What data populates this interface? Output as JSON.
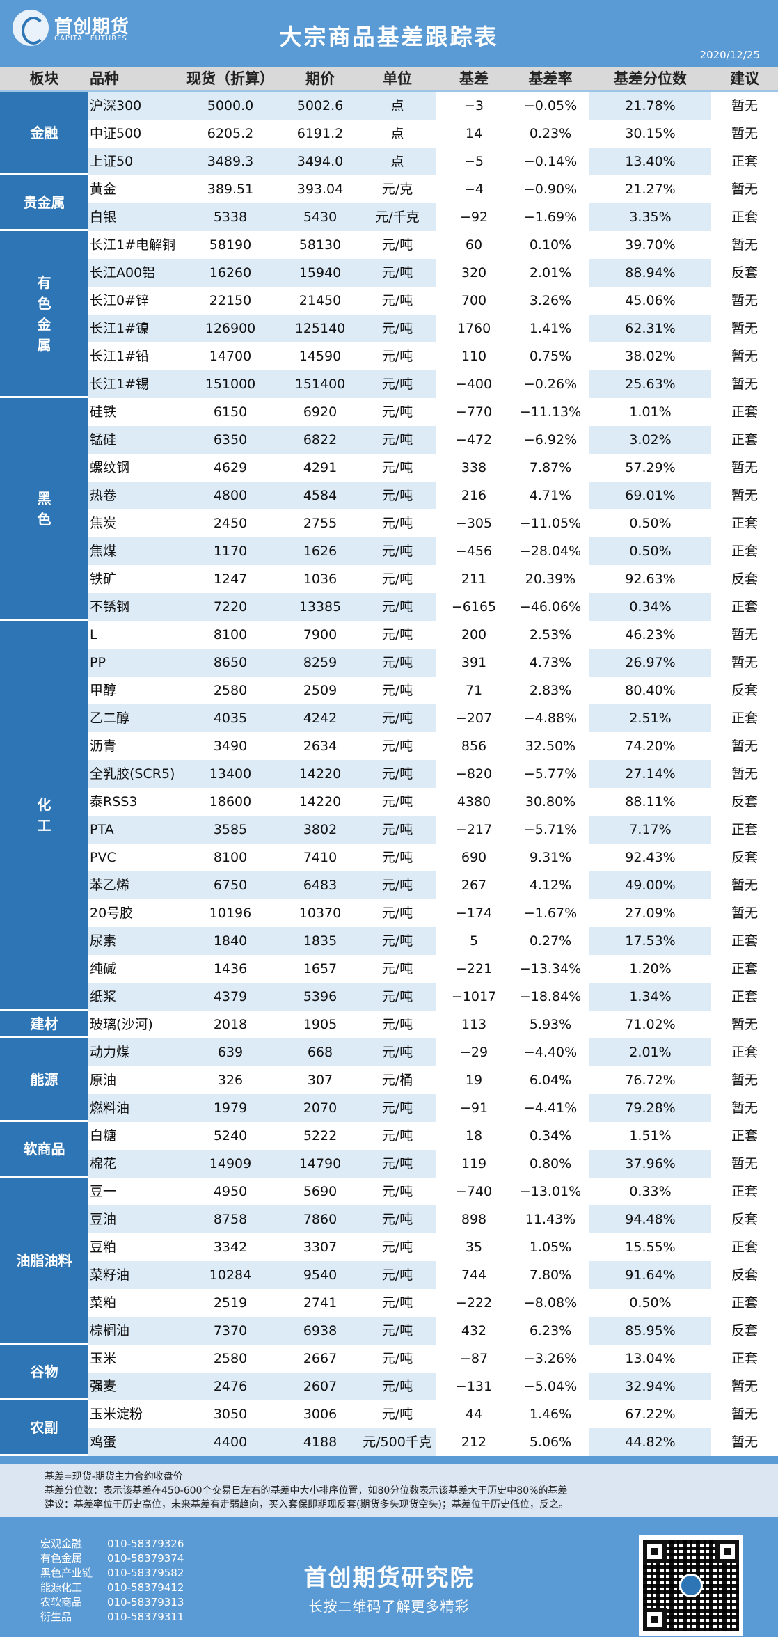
{
  "header": {
    "logo_name": "首创期货",
    "logo_sub": "CAPITAL FUTURES",
    "title": "大宗商品基差跟踪表",
    "date": "2020/12/25"
  },
  "columns": [
    "板块",
    "品种",
    "现货（折算）",
    "期价",
    "单位",
    "基差",
    "基差率",
    "基差分位数",
    "建议"
  ],
  "groups": [
    {
      "name": "金融",
      "rows": [
        [
          "沪深300",
          "5000.0",
          "5002.6",
          "点",
          "−3",
          "−0.05%",
          "21.78%",
          "暂无"
        ],
        [
          "中证500",
          "6205.2",
          "6191.2",
          "点",
          "14",
          "0.23%",
          "30.15%",
          "暂无"
        ],
        [
          "上证50",
          "3489.3",
          "3494.0",
          "点",
          "−5",
          "−0.14%",
          "13.40%",
          "正套"
        ]
      ]
    },
    {
      "name": "贵金属",
      "rows": [
        [
          "黄金",
          "389.51",
          "393.04",
          "元/克",
          "−4",
          "−0.90%",
          "21.27%",
          "暂无"
        ],
        [
          "白银",
          "5338",
          "5430",
          "元/千克",
          "−92",
          "−1.69%",
          "3.35%",
          "正套"
        ]
      ]
    },
    {
      "name": "有色金属",
      "vertical": true,
      "rows": [
        [
          "长江1#电解铜",
          "58190",
          "58130",
          "元/吨",
          "60",
          "0.10%",
          "39.70%",
          "暂无"
        ],
        [
          "长江A00铝",
          "16260",
          "15940",
          "元/吨",
          "320",
          "2.01%",
          "88.94%",
          "反套"
        ],
        [
          "长江0#锌",
          "22150",
          "21450",
          "元/吨",
          "700",
          "3.26%",
          "45.06%",
          "暂无"
        ],
        [
          "长江1#镍",
          "126900",
          "125140",
          "元/吨",
          "1760",
          "1.41%",
          "62.31%",
          "暂无"
        ],
        [
          "长江1#铅",
          "14700",
          "14590",
          "元/吨",
          "110",
          "0.75%",
          "38.02%",
          "暂无"
        ],
        [
          "长江1#锡",
          "151000",
          "151400",
          "元/吨",
          "−400",
          "−0.26%",
          "25.63%",
          "暂无"
        ]
      ]
    },
    {
      "name": "黑色",
      "vertical": true,
      "rows": [
        [
          "硅铁",
          "6150",
          "6920",
          "元/吨",
          "−770",
          "−11.13%",
          "1.01%",
          "正套"
        ],
        [
          "锰硅",
          "6350",
          "6822",
          "元/吨",
          "−472",
          "−6.92%",
          "3.02%",
          "正套"
        ],
        [
          "螺纹钢",
          "4629",
          "4291",
          "元/吨",
          "338",
          "7.87%",
          "57.29%",
          "暂无"
        ],
        [
          "热卷",
          "4800",
          "4584",
          "元/吨",
          "216",
          "4.71%",
          "69.01%",
          "暂无"
        ],
        [
          "焦炭",
          "2450",
          "2755",
          "元/吨",
          "−305",
          "−11.05%",
          "0.50%",
          "正套"
        ],
        [
          "焦煤",
          "1170",
          "1626",
          "元/吨",
          "−456",
          "−28.04%",
          "0.50%",
          "正套"
        ],
        [
          "铁矿",
          "1247",
          "1036",
          "元/吨",
          "211",
          "20.39%",
          "92.63%",
          "反套"
        ],
        [
          "不锈钢",
          "7220",
          "13385",
          "元/吨",
          "−6165",
          "−46.06%",
          "0.34%",
          "正套"
        ]
      ]
    },
    {
      "name": "化工",
      "vertical": true,
      "rows": [
        [
          "L",
          "8100",
          "7900",
          "元/吨",
          "200",
          "2.53%",
          "46.23%",
          "暂无"
        ],
        [
          "PP",
          "8650",
          "8259",
          "元/吨",
          "391",
          "4.73%",
          "26.97%",
          "暂无"
        ],
        [
          "甲醇",
          "2580",
          "2509",
          "元/吨",
          "71",
          "2.83%",
          "80.40%",
          "反套"
        ],
        [
          "乙二醇",
          "4035",
          "4242",
          "元/吨",
          "−207",
          "−4.88%",
          "2.51%",
          "正套"
        ],
        [
          "沥青",
          "3490",
          "2634",
          "元/吨",
          "856",
          "32.50%",
          "74.20%",
          "暂无"
        ],
        [
          "全乳胶(SCR5)",
          "13400",
          "14220",
          "元/吨",
          "−820",
          "−5.77%",
          "27.14%",
          "暂无"
        ],
        [
          "泰RSS3",
          "18600",
          "14220",
          "元/吨",
          "4380",
          "30.80%",
          "88.11%",
          "反套"
        ],
        [
          "PTA",
          "3585",
          "3802",
          "元/吨",
          "−217",
          "−5.71%",
          "7.17%",
          "正套"
        ],
        [
          "PVC",
          "8100",
          "7410",
          "元/吨",
          "690",
          "9.31%",
          "92.43%",
          "反套"
        ],
        [
          "苯乙烯",
          "6750",
          "6483",
          "元/吨",
          "267",
          "4.12%",
          "49.00%",
          "暂无"
        ],
        [
          "20号胶",
          "10196",
          "10370",
          "元/吨",
          "−174",
          "−1.67%",
          "27.09%",
          "暂无"
        ],
        [
          "尿素",
          "1840",
          "1835",
          "元/吨",
          "5",
          "0.27%",
          "17.53%",
          "正套"
        ],
        [
          "纯碱",
          "1436",
          "1657",
          "元/吨",
          "−221",
          "−13.34%",
          "1.20%",
          "正套"
        ],
        [
          "纸浆",
          "4379",
          "5396",
          "元/吨",
          "−1017",
          "−18.84%",
          "1.34%",
          "正套"
        ]
      ]
    },
    {
      "name": "建材",
      "rows": [
        [
          "玻璃(沙河)",
          "2018",
          "1905",
          "元/吨",
          "113",
          "5.93%",
          "71.02%",
          "暂无"
        ]
      ]
    },
    {
      "name": "能源",
      "rows": [
        [
          "动力煤",
          "639",
          "668",
          "元/吨",
          "−29",
          "−4.40%",
          "2.01%",
          "正套"
        ],
        [
          "原油",
          "326",
          "307",
          "元/桶",
          "19",
          "6.04%",
          "76.72%",
          "暂无"
        ],
        [
          "燃料油",
          "1979",
          "2070",
          "元/吨",
          "−91",
          "−4.41%",
          "79.28%",
          "暂无"
        ]
      ]
    },
    {
      "name": "软商品",
      "rows": [
        [
          "白糖",
          "5240",
          "5222",
          "元/吨",
          "18",
          "0.34%",
          "1.51%",
          "正套"
        ],
        [
          "棉花",
          "14909",
          "14790",
          "元/吨",
          "119",
          "0.80%",
          "37.96%",
          "暂无"
        ]
      ]
    },
    {
      "name": "油脂油料",
      "rows": [
        [
          "豆一",
          "4950",
          "5690",
          "元/吨",
          "−740",
          "−13.01%",
          "0.33%",
          "正套"
        ],
        [
          "豆油",
          "8758",
          "7860",
          "元/吨",
          "898",
          "11.43%",
          "94.48%",
          "反套"
        ],
        [
          "豆粕",
          "3342",
          "3307",
          "元/吨",
          "35",
          "1.05%",
          "15.55%",
          "正套"
        ],
        [
          "菜籽油",
          "10284",
          "9540",
          "元/吨",
          "744",
          "7.80%",
          "91.64%",
          "反套"
        ],
        [
          "菜粕",
          "2519",
          "2741",
          "元/吨",
          "−222",
          "−8.08%",
          "0.50%",
          "正套"
        ],
        [
          "棕榈油",
          "7370",
          "6938",
          "元/吨",
          "432",
          "6.23%",
          "85.95%",
          "反套"
        ]
      ]
    },
    {
      "name": "谷物",
      "rows": [
        [
          "玉米",
          "2580",
          "2667",
          "元/吨",
          "−87",
          "−3.26%",
          "13.04%",
          "正套"
        ],
        [
          "强麦",
          "2476",
          "2607",
          "元/吨",
          "−131",
          "−5.04%",
          "32.94%",
          "暂无"
        ]
      ]
    },
    {
      "name": "农副",
      "rows": [
        [
          "玉米淀粉",
          "3050",
          "3006",
          "元/吨",
          "44",
          "1.46%",
          "67.22%",
          "暂无"
        ],
        [
          "鸡蛋",
          "4400",
          "4188",
          "元/500千克",
          "212",
          "5.06%",
          "44.82%",
          "暂无"
        ]
      ]
    }
  ],
  "notes": [
    "基差=现货-期货主力合约收盘价",
    "基差分位数：表示该基差在450-600个交易日左右的基差中大小排序位置，如80分位数表示该基差大于历史中80%的基差",
    "建议：基差率位于历史高位，未来基差有走弱趋向，买入套保即期现反套(期货多头现货空头)；基差位于历史低位，反之。"
  ],
  "footer": {
    "contacts": [
      {
        "label": "宏观金融",
        "phone": "010-58379326"
      },
      {
        "label": "有色金属",
        "phone": "010-58379374"
      },
      {
        "label": "黑色产业链",
        "phone": "010-58379582"
      },
      {
        "label": "能源化工",
        "phone": "010-58379412"
      },
      {
        "label": "农软商品",
        "phone": "010-58379313"
      },
      {
        "label": "衍生品",
        "phone": "010-58379311"
      }
    ],
    "institute": "首创期货研究院",
    "slogan": "长按二维码了解更多精彩"
  },
  "colors": {
    "header_bg": "#5b9bd5",
    "group_bg": "#2e75b6",
    "highlight_bg": "#ddebf7",
    "thead_bg": "#d9d9d9"
  }
}
